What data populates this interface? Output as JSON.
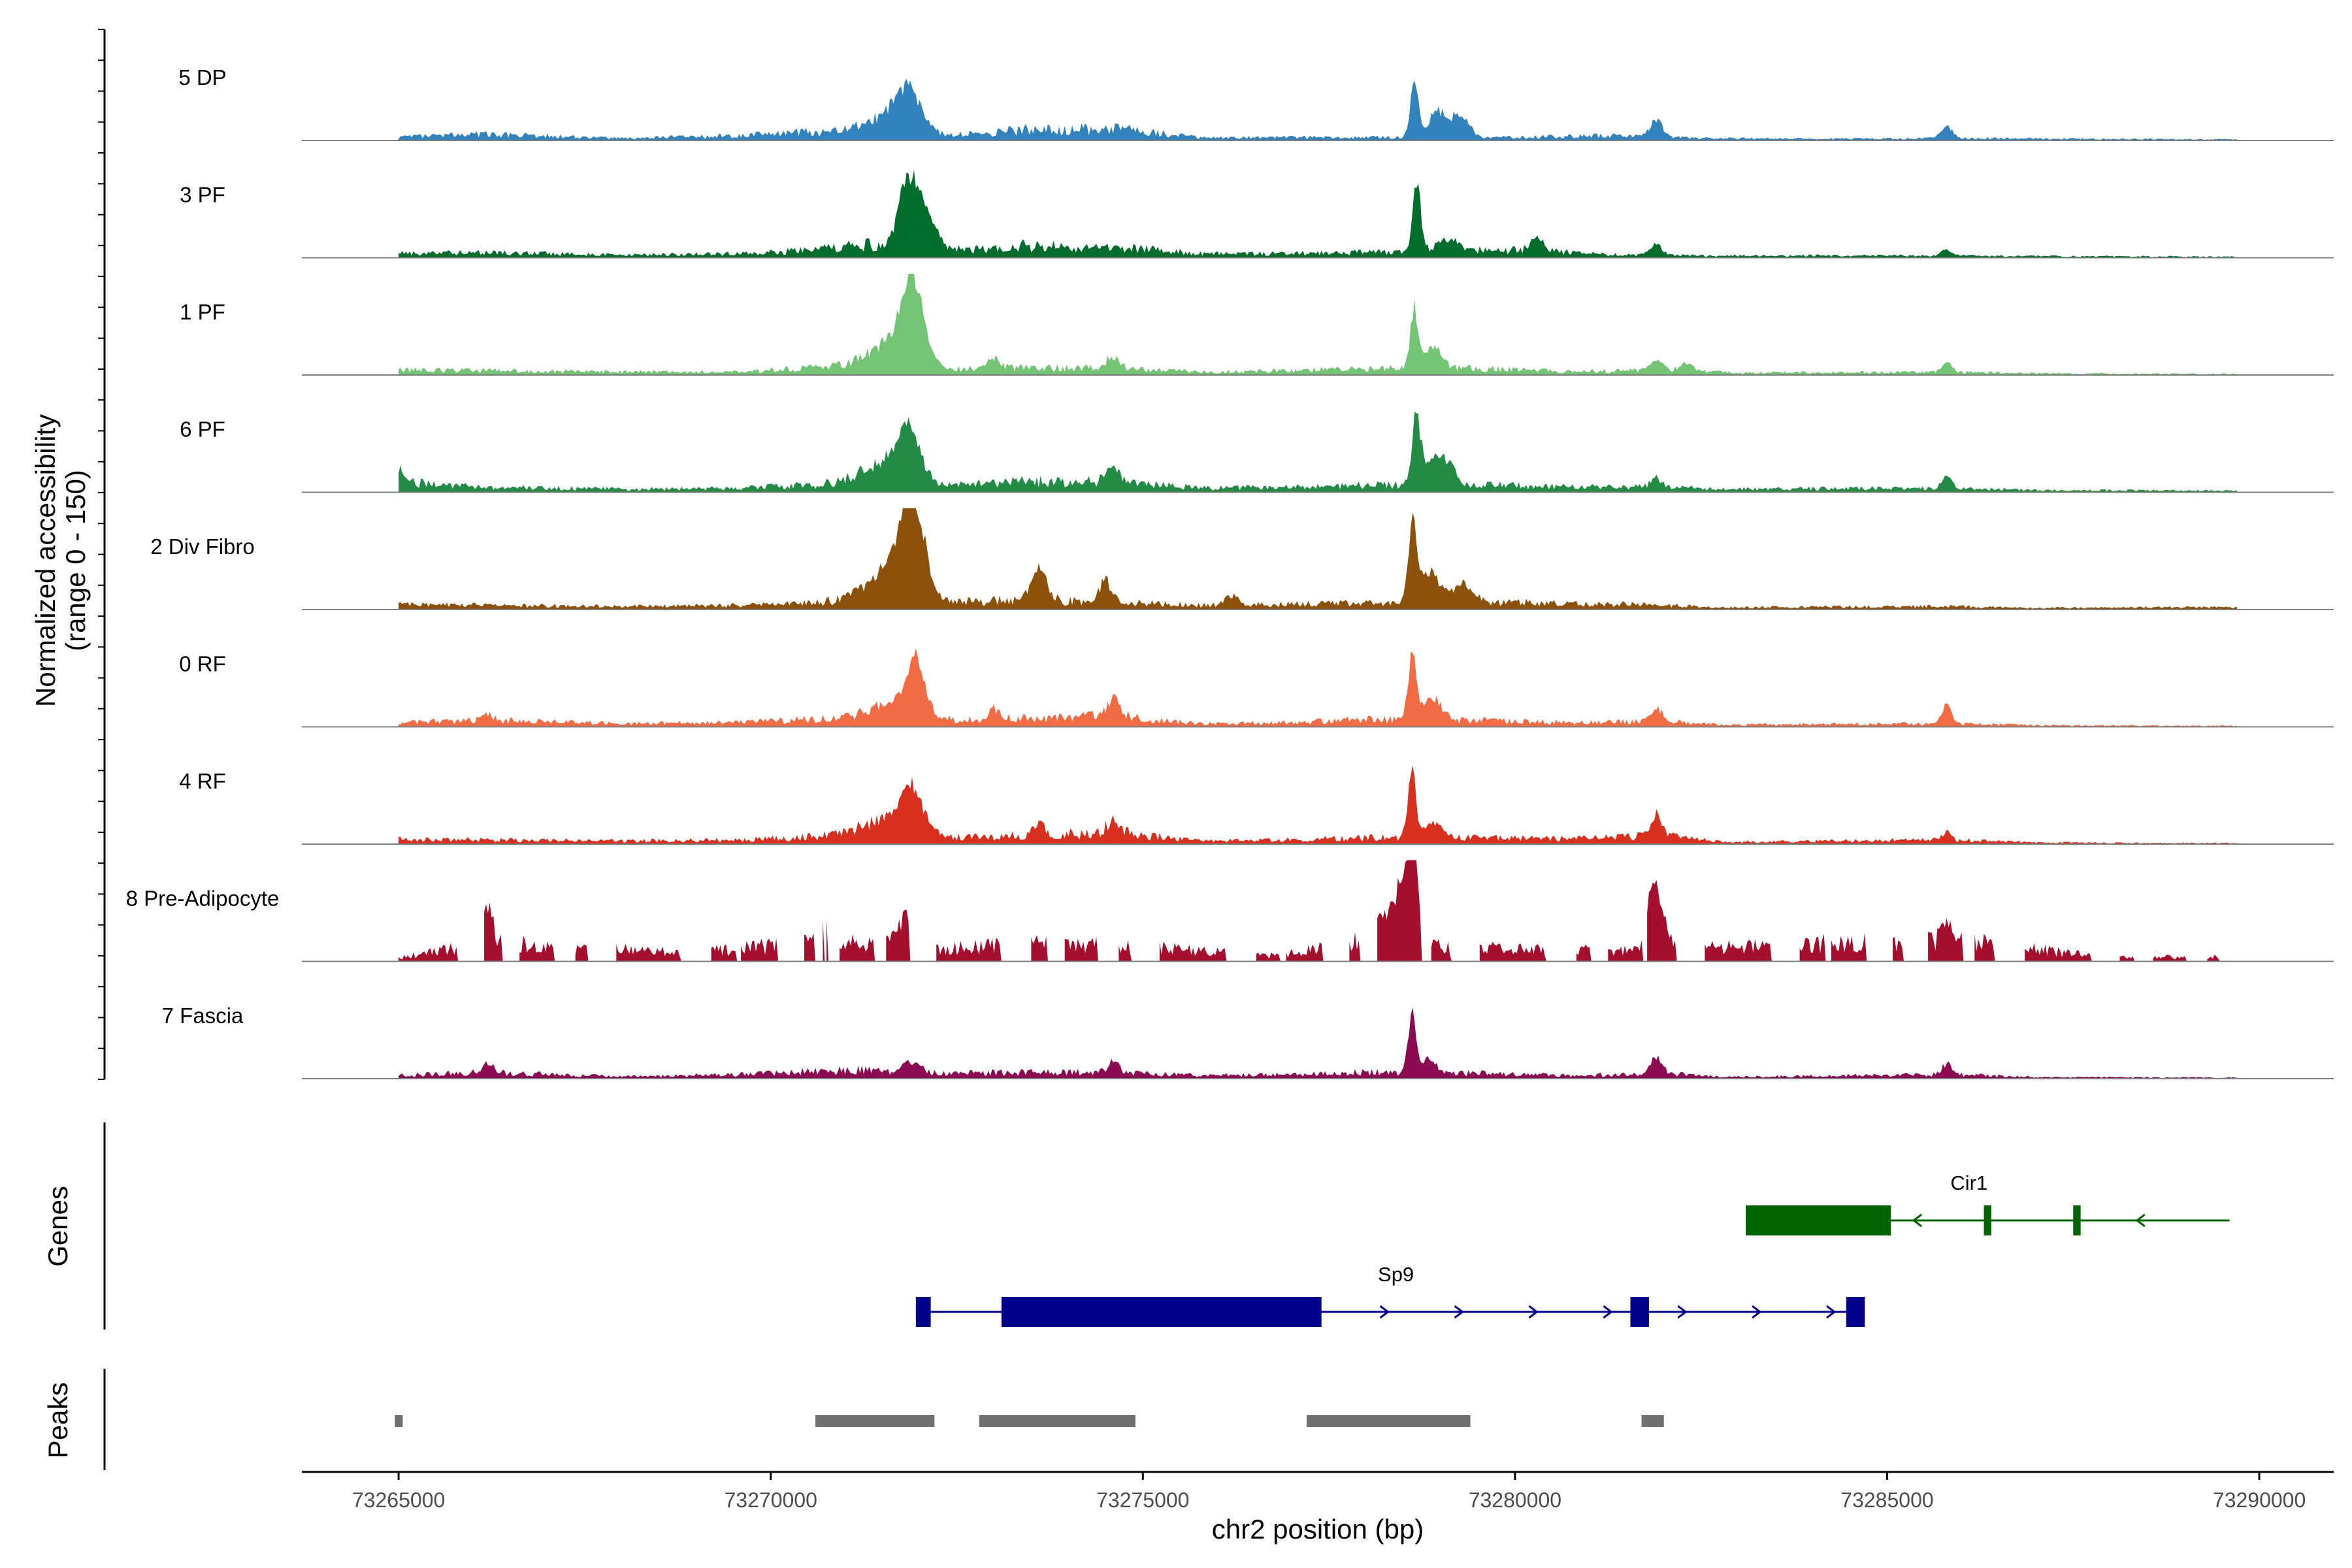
{
  "chart_data": {
    "type": "area",
    "title": "",
    "ylabel": "Normalized accessibility\n(range 0 - 150)",
    "ylabel_lines": [
      "Normalized accessibility",
      "(range 0 - 150)"
    ],
    "xlabel": "chr2 position (bp)",
    "y_range": [
      0,
      150
    ],
    "xlim": [
      73263700,
      73291000
    ],
    "x_ticks": [
      73265000,
      73270000,
      73275000,
      73280000,
      73285000,
      73290000
    ],
    "x_tick_labels": [
      "73265000",
      "73270000",
      "73275000",
      "73280000",
      "73285000",
      "73290000"
    ],
    "series": [
      {
        "name": "5 DP",
        "color": "#3182bd",
        "base": [
          [
            73265000,
            6
          ],
          [
            73266200,
            12
          ],
          [
            73268000,
            4
          ],
          [
            73269600,
            9
          ],
          [
            73270600,
            16
          ],
          [
            73271200,
            22
          ],
          [
            73272400,
            9
          ],
          [
            73273400,
            20
          ],
          [
            73274600,
            22
          ],
          [
            73275800,
            5
          ],
          [
            73277000,
            6
          ],
          [
            73278000,
            6
          ],
          [
            73280000,
            6
          ],
          [
            73281200,
            9
          ],
          [
            73282600,
            4
          ],
          [
            73284000,
            3
          ],
          [
            73285600,
            4
          ],
          [
            73286500,
            4
          ],
          [
            73287500,
            3
          ],
          [
            73289500,
            2
          ]
        ],
        "peaks": [
          [
            73271850,
            62,
            160
          ],
          [
            73271600,
            20,
            300
          ],
          [
            73278650,
            82,
            55
          ],
          [
            73278950,
            40,
            100
          ],
          [
            73279250,
            35,
            120
          ],
          [
            73281900,
            28,
            80
          ],
          [
            73285800,
            20,
            70
          ]
        ]
      },
      {
        "name": "3 PF",
        "color": "#006d2c",
        "base": [
          [
            73265000,
            8
          ],
          [
            73266200,
            10
          ],
          [
            73268000,
            5
          ],
          [
            73269600,
            8
          ],
          [
            73270600,
            14
          ],
          [
            73271300,
            26
          ],
          [
            73272400,
            14
          ],
          [
            73273400,
            22
          ],
          [
            73274600,
            20
          ],
          [
            73275800,
            8
          ],
          [
            73277000,
            8
          ],
          [
            73278000,
            10
          ],
          [
            73279500,
            14
          ],
          [
            73280200,
            14
          ],
          [
            73281200,
            6
          ],
          [
            73282600,
            4
          ],
          [
            73285800,
            4
          ],
          [
            73287000,
            3
          ],
          [
            73289500,
            2
          ]
        ],
        "peaks": [
          [
            73271850,
            90,
            120
          ],
          [
            73272050,
            55,
            150
          ],
          [
            73278680,
            102,
            55
          ],
          [
            73279100,
            18,
            150
          ],
          [
            73280300,
            20,
            80
          ],
          [
            73281900,
            18,
            70
          ],
          [
            73285800,
            10,
            60
          ]
        ]
      },
      {
        "name": "1 PF",
        "color": "#74c476",
        "base": [
          [
            73265000,
            10
          ],
          [
            73266200,
            8
          ],
          [
            73268000,
            6
          ],
          [
            73269600,
            6
          ],
          [
            73270600,
            14
          ],
          [
            73271200,
            20
          ],
          [
            73272400,
            10
          ],
          [
            73273400,
            14
          ],
          [
            73274600,
            12
          ],
          [
            73275800,
            6
          ],
          [
            73277000,
            8
          ],
          [
            73278000,
            12
          ],
          [
            73279500,
            12
          ],
          [
            73280800,
            6
          ],
          [
            73282000,
            10
          ],
          [
            73283000,
            4
          ],
          [
            73285800,
            6
          ],
          [
            73287000,
            3
          ],
          [
            73289500,
            2
          ]
        ],
        "peaks": [
          [
            73271900,
            105,
            140
          ],
          [
            73271700,
            40,
            300
          ],
          [
            73278650,
            85,
            55
          ],
          [
            73278900,
            30,
            120
          ],
          [
            73281900,
            14,
            70
          ],
          [
            73282300,
            14,
            80
          ],
          [
            73285800,
            16,
            60
          ],
          [
            73273000,
            15,
            80
          ],
          [
            73274600,
            18,
            90
          ]
        ]
      },
      {
        "name": "6 PF",
        "color": "#238b45",
        "base": [
          [
            73265000,
            20
          ],
          [
            73266200,
            10
          ],
          [
            73268000,
            6
          ],
          [
            73269600,
            8
          ],
          [
            73270600,
            14
          ],
          [
            73271200,
            22
          ],
          [
            73272400,
            12
          ],
          [
            73273400,
            20
          ],
          [
            73274600,
            20
          ],
          [
            73275800,
            8
          ],
          [
            73277000,
            10
          ],
          [
            73278000,
            14
          ],
          [
            73279500,
            14
          ],
          [
            73280800,
            10
          ],
          [
            73282000,
            10
          ],
          [
            73282800,
            6
          ],
          [
            73285800,
            8
          ],
          [
            73287000,
            4
          ],
          [
            73289500,
            3
          ]
        ],
        "peaks": [
          [
            73271850,
            68,
            150
          ],
          [
            73271600,
            30,
            300
          ],
          [
            73278680,
            102,
            55
          ],
          [
            73278900,
            35,
            120
          ],
          [
            73279100,
            30,
            100
          ],
          [
            73281900,
            14,
            70
          ],
          [
            73285800,
            20,
            60
          ],
          [
            73274600,
            20,
            90
          ],
          [
            73265000,
            20,
            60
          ]
        ]
      },
      {
        "name": "2 Div Fibro",
        "color": "#8c510a",
        "base": [
          [
            73265000,
            10
          ],
          [
            73266200,
            8
          ],
          [
            73268000,
            6
          ],
          [
            73269600,
            8
          ],
          [
            73270600,
            12
          ],
          [
            73271200,
            22
          ],
          [
            73272400,
            14
          ],
          [
            73273400,
            18
          ],
          [
            73274600,
            14
          ],
          [
            73275800,
            8
          ],
          [
            73277000,
            10
          ],
          [
            73278000,
            12
          ],
          [
            73279500,
            14
          ],
          [
            73280800,
            12
          ],
          [
            73282000,
            8
          ],
          [
            73282800,
            4
          ],
          [
            73285800,
            6
          ],
          [
            73287000,
            3
          ],
          [
            73288800,
            4
          ]
        ],
        "peaks": [
          [
            73271900,
            130,
            150
          ],
          [
            73271650,
            50,
            300
          ],
          [
            73273600,
            48,
            100
          ],
          [
            73274500,
            32,
            80
          ],
          [
            73278620,
            112,
            55
          ],
          [
            73278850,
            50,
            130
          ],
          [
            73279300,
            25,
            150
          ],
          [
            73276200,
            15,
            90
          ]
        ]
      },
      {
        "name": "0 RF",
        "color": "#f16c45",
        "base": [
          [
            73265000,
            10
          ],
          [
            73266200,
            12
          ],
          [
            73268000,
            6
          ],
          [
            73269600,
            8
          ],
          [
            73270600,
            14
          ],
          [
            73271200,
            18
          ],
          [
            73272400,
            12
          ],
          [
            73273400,
            16
          ],
          [
            73274600,
            20
          ],
          [
            73275800,
            6
          ],
          [
            73277000,
            8
          ],
          [
            73278000,
            14
          ],
          [
            73279500,
            12
          ],
          [
            73280800,
            8
          ],
          [
            73282000,
            10
          ],
          [
            73282800,
            4
          ],
          [
            73285800,
            6
          ],
          [
            73287000,
            3
          ],
          [
            73288800,
            2
          ]
        ],
        "peaks": [
          [
            73271950,
            72,
            120
          ],
          [
            73271700,
            25,
            300
          ],
          [
            73278620,
            105,
            55
          ],
          [
            73278900,
            35,
            110
          ],
          [
            73281900,
            22,
            70
          ],
          [
            73285800,
            30,
            60
          ],
          [
            73274600,
            28,
            90
          ],
          [
            73273000,
            18,
            80
          ],
          [
            73266200,
            10,
            80
          ]
        ]
      },
      {
        "name": "4 RF",
        "color": "#d7301f",
        "base": [
          [
            73265000,
            10
          ],
          [
            73266200,
            8
          ],
          [
            73268000,
            6
          ],
          [
            73269600,
            8
          ],
          [
            73270600,
            14
          ],
          [
            73271200,
            20
          ],
          [
            73272400,
            12
          ],
          [
            73273400,
            16
          ],
          [
            73274600,
            22
          ],
          [
            73275800,
            6
          ],
          [
            73277000,
            8
          ],
          [
            73278000,
            12
          ],
          [
            73279500,
            12
          ],
          [
            73280800,
            10
          ],
          [
            73282000,
            16
          ],
          [
            73282800,
            4
          ],
          [
            73285800,
            8
          ],
          [
            73287000,
            3
          ],
          [
            73288800,
            2
          ]
        ],
        "peaks": [
          [
            73271900,
            62,
            150
          ],
          [
            73271600,
            25,
            300
          ],
          [
            73278620,
            92,
            55
          ],
          [
            73278900,
            25,
            110
          ],
          [
            73281900,
            32,
            70
          ],
          [
            73285800,
            14,
            60
          ],
          [
            73273600,
            18,
            80
          ],
          [
            73274600,
            20,
            90
          ]
        ]
      },
      {
        "name": "8 Pre-Adipocyte",
        "color": "#a50f2e",
        "sparse": true,
        "base": [
          [
            73265000,
            6
          ],
          [
            73266200,
            40
          ],
          [
            73267200,
            20
          ],
          [
            73268000,
            22
          ],
          [
            73269200,
            20
          ],
          [
            73270600,
            35
          ],
          [
            73271300,
            32
          ],
          [
            73272400,
            25
          ],
          [
            73273400,
            32
          ],
          [
            73274600,
            30
          ],
          [
            73276800,
            10
          ],
          [
            73277500,
            28
          ],
          [
            73278000,
            35
          ],
          [
            73279000,
            25
          ],
          [
            73280200,
            22
          ],
          [
            73281200,
            20
          ],
          [
            73285800,
            40
          ],
          [
            73288000,
            8
          ]
        ],
        "peaks": [
          [
            73278620,
            150,
            55
          ],
          [
            73278550,
            70,
            150
          ],
          [
            73278300,
            40,
            200
          ],
          [
            73281850,
            75,
            70
          ],
          [
            73281950,
            50,
            90
          ],
          [
            73271800,
            45,
            100
          ],
          [
            73285800,
            45,
            50
          ],
          [
            73266200,
            40,
            60
          ],
          [
            73270750,
            35,
            80
          ]
        ]
      },
      {
        "name": "7 Fascia",
        "color": "#8c0a52",
        "base": [
          [
            73265000,
            6
          ],
          [
            73266200,
            12
          ],
          [
            73268000,
            4
          ],
          [
            73269600,
            8
          ],
          [
            73270600,
            14
          ],
          [
            73271200,
            16
          ],
          [
            73272400,
            10
          ],
          [
            73273400,
            12
          ],
          [
            73274600,
            12
          ],
          [
            73275800,
            6
          ],
          [
            73277000,
            8
          ],
          [
            73278000,
            12
          ],
          [
            73279500,
            10
          ],
          [
            73280800,
            6
          ],
          [
            73282000,
            10
          ],
          [
            73282800,
            3
          ],
          [
            73285800,
            8
          ],
          [
            73287000,
            3
          ],
          [
            73289000,
            2
          ]
        ],
        "peaks": [
          [
            73278620,
            85,
            55
          ],
          [
            73278850,
            20,
            100
          ],
          [
            73281900,
            24,
            70
          ],
          [
            73285800,
            16,
            60
          ],
          [
            73271900,
            18,
            100
          ],
          [
            73266200,
            14,
            80
          ],
          [
            73274600,
            14,
            80
          ]
        ]
      }
    ],
    "genes": [
      {
        "name": "Cir1",
        "color": "#006400",
        "strand": "-",
        "start": 73283100,
        "end": 73289600,
        "exons": [
          [
            73283100,
            73285050
          ],
          [
            73286300,
            73286400
          ],
          [
            73287500,
            73287600
          ]
        ]
      },
      {
        "name": "Sp9",
        "color": "#00008b",
        "strand": "+",
        "start": 73271950,
        "end": 73284700,
        "exons": [
          [
            73271950,
            73272150
          ],
          [
            73273100,
            73277400
          ],
          [
            73281550,
            73281800
          ],
          [
            73284450,
            73284700
          ]
        ]
      }
    ],
    "peaks_track": {
      "color": "#707070",
      "regions": [
        [
          73264950,
          73265050
        ],
        [
          73270600,
          73272200
        ],
        [
          73272800,
          73274900
        ],
        [
          73277200,
          73279400
        ],
        [
          73281700,
          73282000
        ]
      ]
    },
    "panel_titles": {
      "genes": "Genes",
      "peaks": "Peaks"
    }
  }
}
